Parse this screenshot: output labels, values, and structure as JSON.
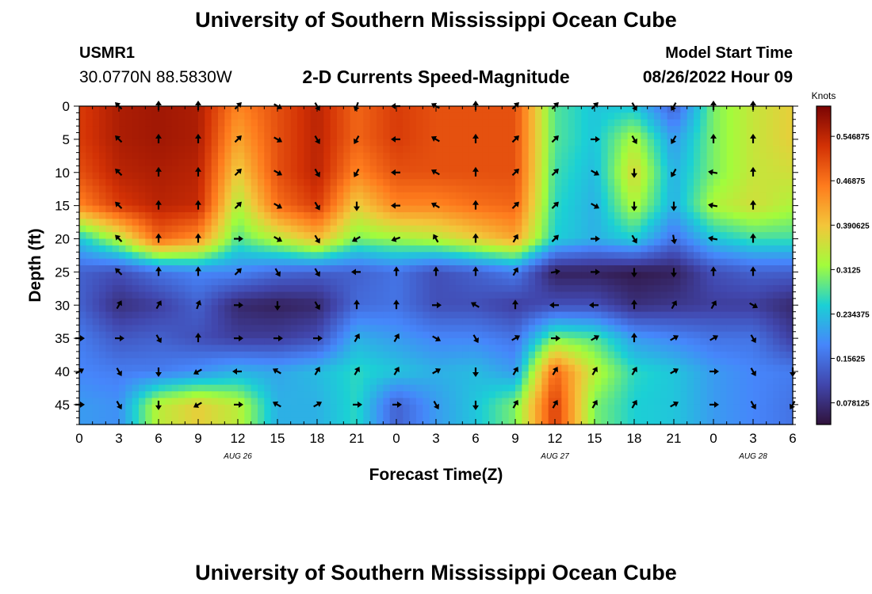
{
  "titles": {
    "main": "University of Southern Mississippi Ocean Cube",
    "footer": "University of Southern Mississippi Ocean Cube"
  },
  "station": {
    "id": "USMR1",
    "coords": "30.0770N  88.5830W"
  },
  "model": {
    "label": "Model Start Time",
    "time": "08/26/2022 Hour 09"
  },
  "colors": {
    "scale": [
      "#30123b",
      "#4146ac",
      "#4686fb",
      "#1bd0d5",
      "#a2fc3c",
      "#f3c63a",
      "#fe7b1d",
      "#d23105",
      "#7a0403"
    ]
  },
  "chart_data": {
    "type": "heatmap",
    "title": "2-D Currents Speed-Magnitude",
    "xlabel": "Forecast Time(Z)",
    "ylabel": "Depth (ft)",
    "x_range_hours": [
      0,
      54
    ],
    "y_range_ft": [
      0,
      48
    ],
    "x_ticks": [
      {
        "hour": 0,
        "label": "0"
      },
      {
        "hour": 3,
        "label": "3"
      },
      {
        "hour": 6,
        "label": "6"
      },
      {
        "hour": 9,
        "label": "9"
      },
      {
        "hour": 12,
        "label": "12"
      },
      {
        "hour": 15,
        "label": "15"
      },
      {
        "hour": 18,
        "label": "18"
      },
      {
        "hour": 21,
        "label": "21"
      },
      {
        "hour": 24,
        "label": "0"
      },
      {
        "hour": 27,
        "label": "3"
      },
      {
        "hour": 30,
        "label": "6"
      },
      {
        "hour": 33,
        "label": "9"
      },
      {
        "hour": 36,
        "label": "12"
      },
      {
        "hour": 39,
        "label": "15"
      },
      {
        "hour": 42,
        "label": "18"
      },
      {
        "hour": 45,
        "label": "21"
      },
      {
        "hour": 48,
        "label": "0"
      },
      {
        "hour": 51,
        "label": "3"
      },
      {
        "hour": 54,
        "label": "6"
      }
    ],
    "date_labels": [
      {
        "hour": 12,
        "label": "AUG 26"
      },
      {
        "hour": 36,
        "label": "AUG 27"
      },
      {
        "hour": 51,
        "label": "AUG 28"
      }
    ],
    "y_ticks": [
      {
        "depth": 0,
        "label": "0"
      },
      {
        "depth": 5,
        "label": "5"
      },
      {
        "depth": 10,
        "label": "10"
      },
      {
        "depth": 15,
        "label": "15"
      },
      {
        "depth": 20,
        "label": "20"
      },
      {
        "depth": 25,
        "label": "25"
      },
      {
        "depth": 30,
        "label": "30"
      },
      {
        "depth": 35,
        "label": "35"
      },
      {
        "depth": 40,
        "label": "40"
      },
      {
        "depth": 45,
        "label": "45"
      }
    ],
    "colorbar": {
      "units": "Knots",
      "range": [
        0.04,
        0.6
      ],
      "ticks": [
        {
          "value": 0.078125,
          "label": "0.078125"
        },
        {
          "value": 0.15625,
          "label": "0.15625"
        },
        {
          "value": 0.234375,
          "label": "0.234375"
        },
        {
          "value": 0.3125,
          "label": "0.3125"
        },
        {
          "value": 0.390625,
          "label": "0.390625"
        },
        {
          "value": 0.46875,
          "label": "0.46875"
        },
        {
          "value": 0.546875,
          "label": "0.546875"
        }
      ]
    },
    "depths_ft": [
      0,
      5,
      10,
      15,
      20,
      25,
      30,
      35,
      40,
      45
    ],
    "speed_hours": [
      0,
      3,
      6,
      9,
      12,
      15,
      18,
      21,
      24,
      27,
      30,
      33,
      36,
      39,
      42,
      45,
      48,
      51,
      54
    ],
    "speed_knots": [
      [
        0.52,
        0.56,
        0.57,
        0.56,
        0.45,
        0.5,
        0.55,
        0.48,
        0.52,
        0.5,
        0.5,
        0.5,
        0.28,
        0.24,
        0.24,
        0.14,
        0.3,
        0.35,
        0.38
      ],
      [
        0.52,
        0.56,
        0.57,
        0.56,
        0.42,
        0.5,
        0.55,
        0.48,
        0.52,
        0.5,
        0.5,
        0.5,
        0.28,
        0.24,
        0.33,
        0.2,
        0.3,
        0.35,
        0.38
      ],
      [
        0.5,
        0.55,
        0.56,
        0.55,
        0.38,
        0.5,
        0.55,
        0.45,
        0.5,
        0.5,
        0.5,
        0.5,
        0.27,
        0.23,
        0.37,
        0.22,
        0.3,
        0.35,
        0.36
      ],
      [
        0.45,
        0.52,
        0.55,
        0.54,
        0.33,
        0.47,
        0.52,
        0.38,
        0.45,
        0.45,
        0.47,
        0.48,
        0.26,
        0.22,
        0.33,
        0.22,
        0.33,
        0.36,
        0.33
      ],
      [
        0.24,
        0.34,
        0.48,
        0.44,
        0.28,
        0.34,
        0.4,
        0.3,
        0.32,
        0.34,
        0.38,
        0.42,
        0.25,
        0.22,
        0.25,
        0.16,
        0.24,
        0.27,
        0.27
      ],
      [
        0.14,
        0.12,
        0.16,
        0.18,
        0.18,
        0.15,
        0.14,
        0.14,
        0.16,
        0.12,
        0.14,
        0.17,
        0.06,
        0.06,
        0.05,
        0.06,
        0.12,
        0.14,
        0.14
      ],
      [
        0.14,
        0.08,
        0.1,
        0.14,
        0.07,
        0.06,
        0.07,
        0.15,
        0.16,
        0.12,
        0.12,
        0.1,
        0.12,
        0.12,
        0.08,
        0.09,
        0.1,
        0.1,
        0.07
      ],
      [
        0.17,
        0.13,
        0.14,
        0.12,
        0.1,
        0.1,
        0.12,
        0.22,
        0.2,
        0.18,
        0.18,
        0.16,
        0.3,
        0.28,
        0.2,
        0.18,
        0.16,
        0.16,
        0.1
      ],
      [
        0.18,
        0.17,
        0.17,
        0.19,
        0.22,
        0.21,
        0.23,
        0.26,
        0.24,
        0.22,
        0.23,
        0.2,
        0.48,
        0.34,
        0.26,
        0.24,
        0.2,
        0.18,
        0.17
      ],
      [
        0.2,
        0.19,
        0.34,
        0.38,
        0.34,
        0.22,
        0.22,
        0.26,
        0.14,
        0.2,
        0.24,
        0.3,
        0.52,
        0.3,
        0.25,
        0.24,
        0.2,
        0.18,
        0.16
      ]
    ],
    "vector_hours": [
      0,
      3,
      6,
      9,
      12,
      15,
      18,
      21,
      24,
      27,
      30,
      33,
      36,
      39,
      42,
      45,
      48,
      51,
      54
    ],
    "vector_directions_deg": [
      [
        null,
        315,
        0,
        0,
        45,
        120,
        150,
        200,
        270,
        300,
        0,
        45,
        45,
        45,
        150,
        210,
        0,
        0,
        null
      ],
      [
        null,
        315,
        0,
        0,
        45,
        120,
        150,
        210,
        270,
        300,
        0,
        45,
        45,
        90,
        150,
        210,
        0,
        0,
        null
      ],
      [
        null,
        315,
        0,
        0,
        45,
        120,
        150,
        210,
        270,
        300,
        0,
        45,
        45,
        120,
        180,
        210,
        280,
        0,
        null
      ],
      [
        null,
        315,
        0,
        0,
        45,
        120,
        150,
        180,
        270,
        300,
        0,
        45,
        45,
        120,
        180,
        180,
        280,
        0,
        null
      ],
      [
        null,
        315,
        0,
        0,
        90,
        120,
        150,
        240,
        250,
        330,
        0,
        30,
        45,
        90,
        150,
        170,
        280,
        0,
        null
      ],
      [
        null,
        315,
        0,
        0,
        45,
        150,
        150,
        270,
        0,
        0,
        0,
        30,
        80,
        90,
        180,
        180,
        0,
        0,
        null
      ],
      [
        null,
        30,
        30,
        20,
        90,
        180,
        150,
        0,
        0,
        90,
        300,
        0,
        270,
        270,
        0,
        30,
        30,
        120,
        null
      ],
      [
        90,
        90,
        150,
        0,
        90,
        90,
        90,
        30,
        30,
        120,
        150,
        60,
        90,
        60,
        0,
        60,
        60,
        150,
        null
      ],
      [
        60,
        150,
        180,
        240,
        270,
        300,
        30,
        30,
        30,
        60,
        180,
        30,
        30,
        30,
        30,
        60,
        90,
        150,
        180
      ],
      [
        90,
        150,
        180,
        240,
        90,
        300,
        60,
        90,
        90,
        150,
        180,
        30,
        30,
        30,
        30,
        60,
        90,
        150,
        210
      ]
    ]
  }
}
